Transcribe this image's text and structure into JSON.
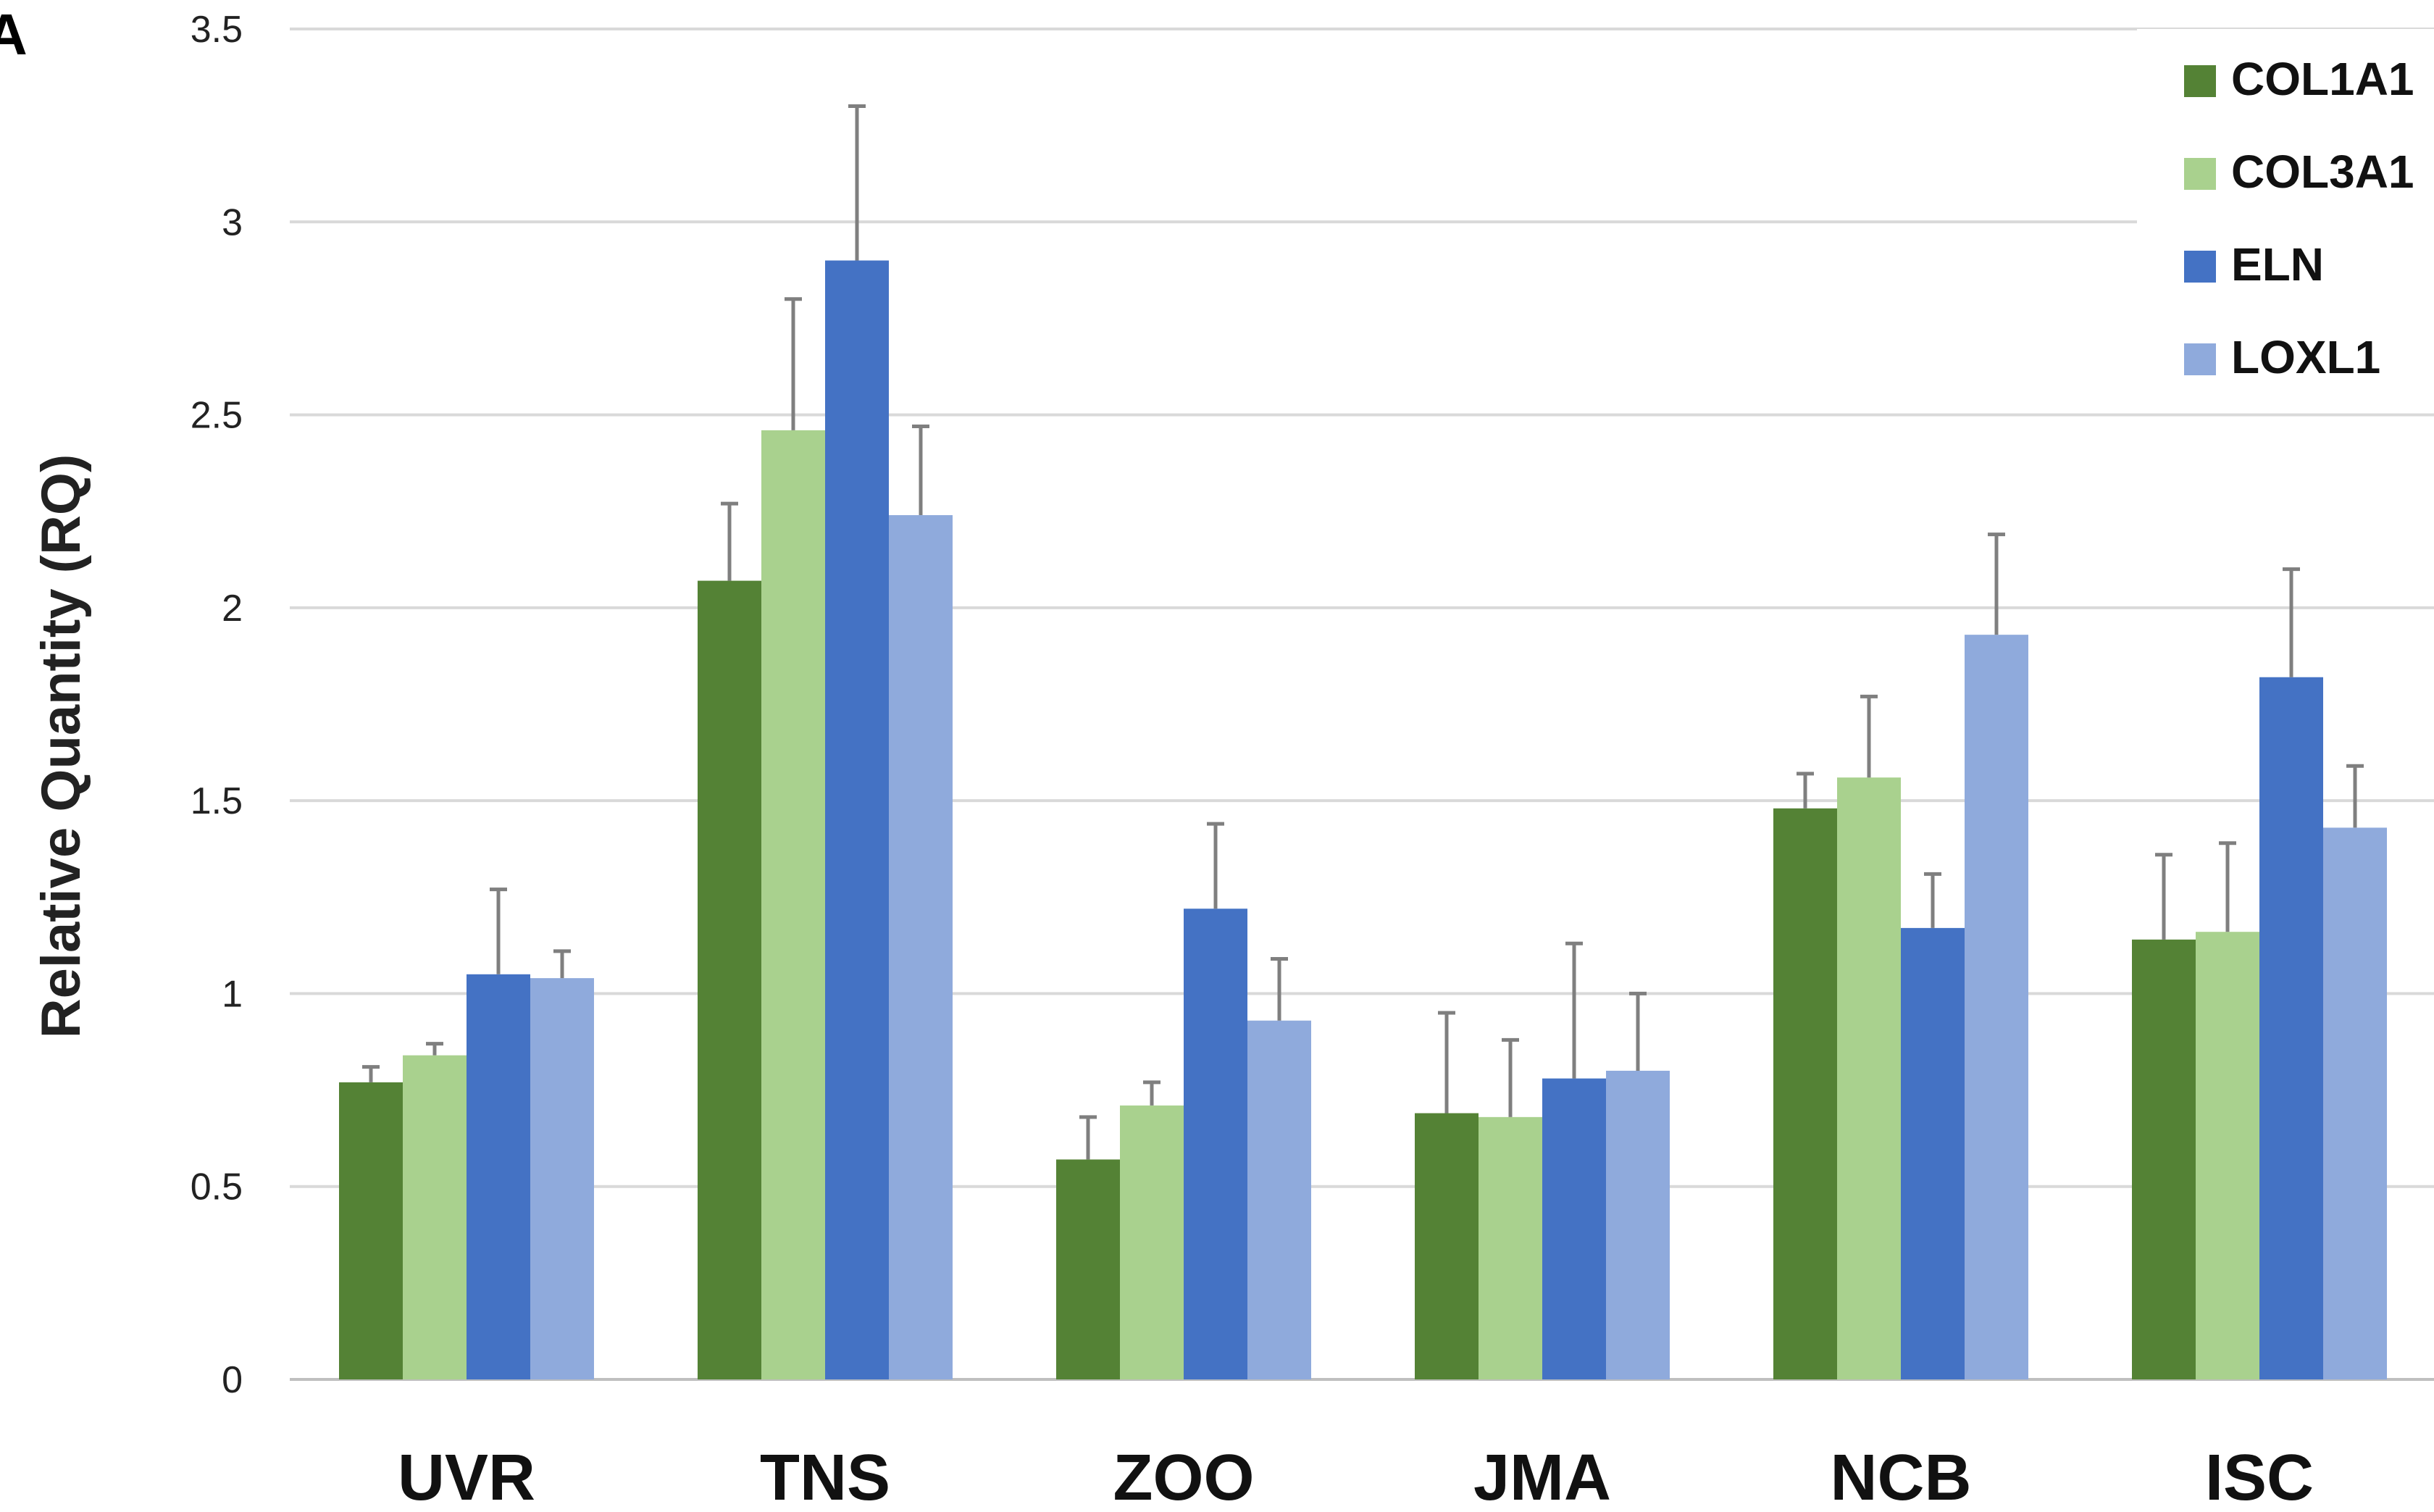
{
  "panel_label": "A",
  "chart_data": {
    "type": "bar",
    "title": "",
    "xlabel": "",
    "ylabel": "Relative Quantity (RQ)",
    "ylim": [
      0,
      3.5
    ],
    "yticks": [
      0,
      0.5,
      1,
      1.5,
      2,
      2.5,
      3,
      3.5
    ],
    "ytick_labels": [
      "0",
      "0.5",
      "1",
      "1.5",
      "2",
      "2.5",
      "3",
      "3.5"
    ],
    "grid": true,
    "legend_position": "top-right",
    "categories": [
      "UVR",
      "TNS",
      "ZOO",
      "JMA",
      "NCB",
      "ISC"
    ],
    "series": [
      {
        "name": "COL1A1",
        "color": "#548235",
        "values": [
          0.77,
          2.07,
          0.57,
          0.69,
          1.48,
          1.14
        ],
        "errors": [
          0.04,
          0.2,
          0.11,
          0.26,
          0.09,
          0.22
        ]
      },
      {
        "name": "COL3A1",
        "color": "#a9d18e",
        "values": [
          0.84,
          2.46,
          0.71,
          0.68,
          1.56,
          1.16
        ],
        "errors": [
          0.03,
          0.34,
          0.06,
          0.2,
          0.21,
          0.23
        ]
      },
      {
        "name": "ELN",
        "color": "#4472c4",
        "values": [
          1.05,
          2.9,
          1.22,
          0.78,
          1.17,
          1.82
        ],
        "errors": [
          0.22,
          0.4,
          0.22,
          0.35,
          0.14,
          0.28
        ]
      },
      {
        "name": "LOXL1",
        "color": "#8faadc",
        "values": [
          1.04,
          2.24,
          0.93,
          0.8,
          1.93,
          1.43
        ],
        "errors": [
          0.07,
          0.23,
          0.16,
          0.2,
          0.26,
          0.16
        ]
      }
    ]
  }
}
